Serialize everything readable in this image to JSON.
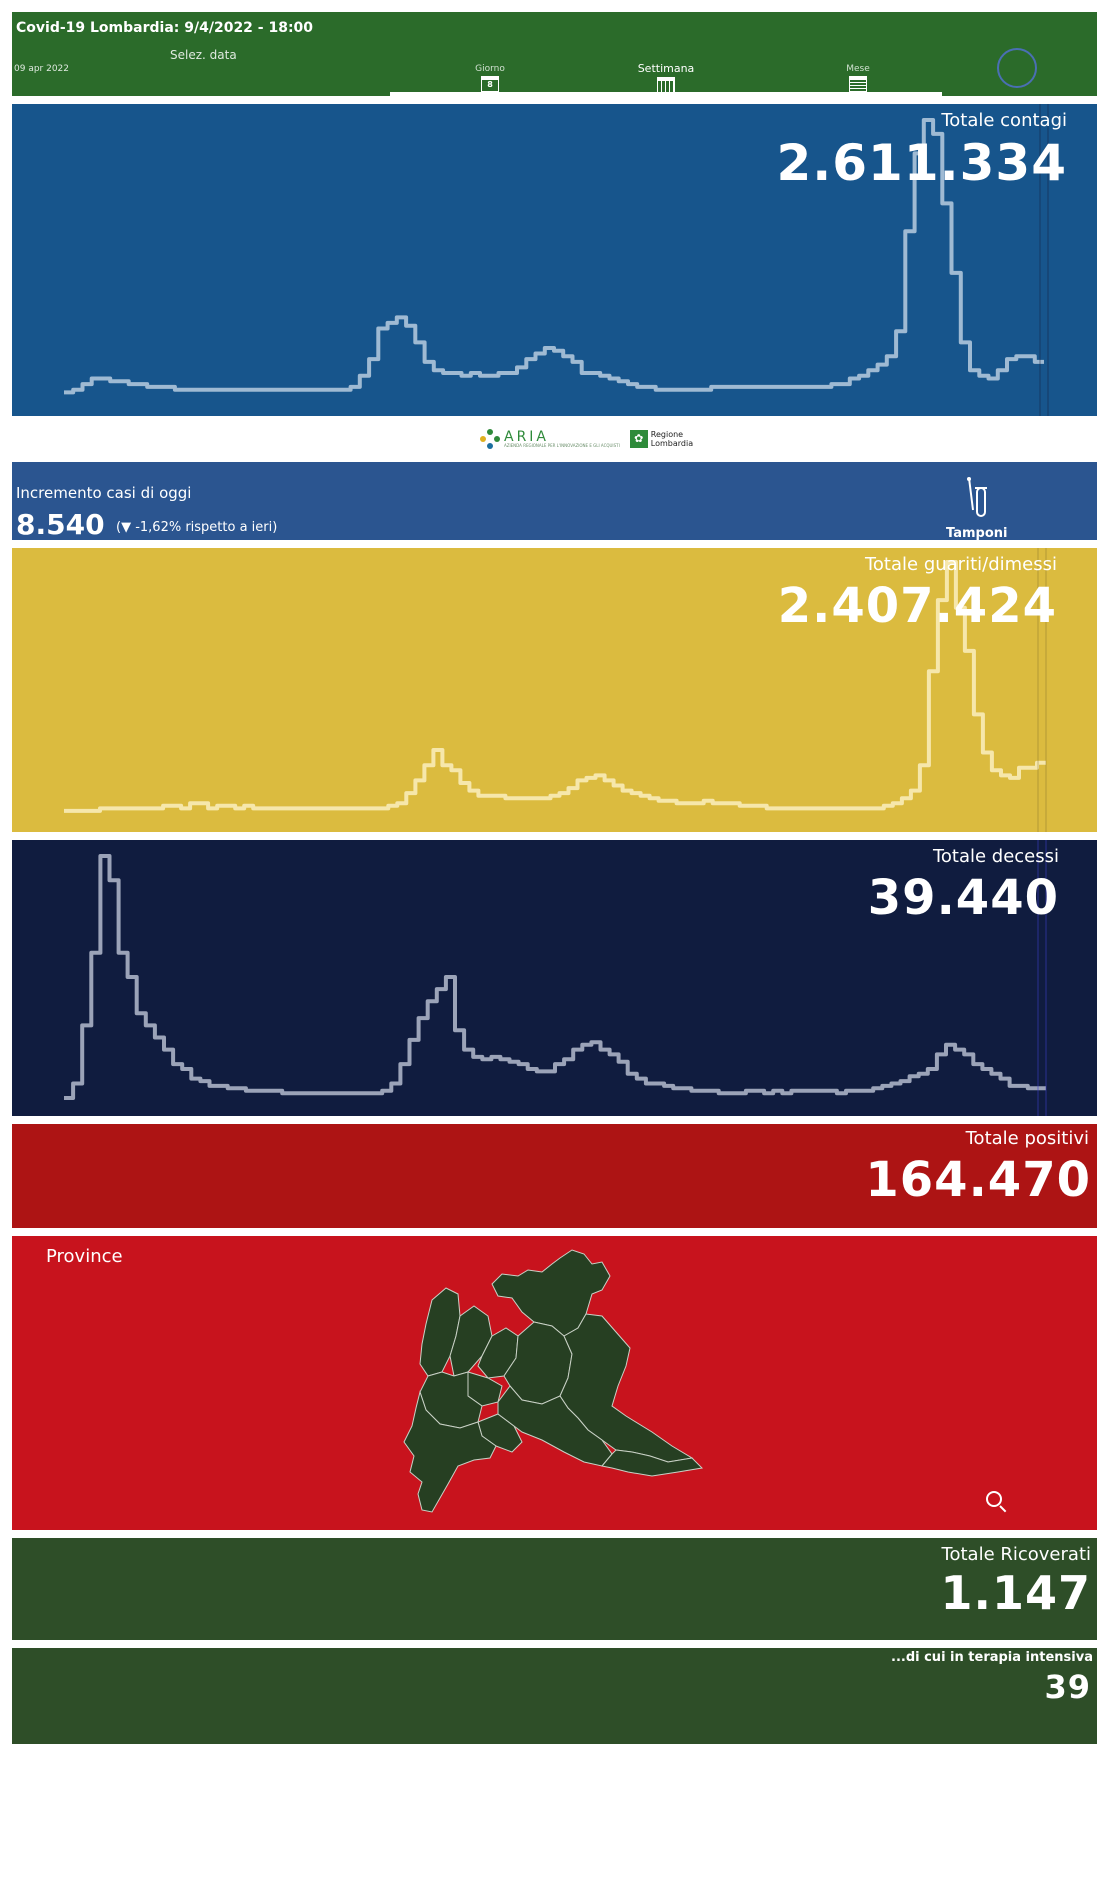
{
  "header": {
    "title": "Covid-19 Lombardia: 9/4/2022 - 18:00",
    "select_label": "Selez. data",
    "date": "09 apr 2022",
    "options": [
      {
        "label": "Giorno",
        "icon": "calendar-day-icon",
        "glyph": "8",
        "selected": false
      },
      {
        "label": "Settimana",
        "icon": "calendar-week-icon",
        "glyph": "",
        "selected": true
      },
      {
        "label": "Mese",
        "icon": "calendar-month-icon",
        "glyph": "",
        "selected": false
      }
    ]
  },
  "contagi": {
    "title": "Totale contagi",
    "value": "2.611.334",
    "color": "#17558c",
    "chart_data": {
      "type": "line",
      "step": true,
      "series": [
        {
          "values": [
            2,
            3,
            5,
            7,
            7,
            6,
            6,
            5,
            5,
            4,
            4,
            4,
            3,
            3,
            3,
            3,
            3,
            3,
            3,
            3,
            3,
            3,
            3,
            3,
            3,
            3,
            3,
            3,
            3,
            3,
            3,
            4,
            8,
            14,
            25,
            27,
            29,
            26,
            20,
            13,
            10,
            9,
            9,
            8,
            9,
            8,
            8,
            9,
            9,
            11,
            14,
            16,
            18,
            17,
            15,
            13,
            9,
            9,
            8,
            7,
            6,
            5,
            4,
            4,
            3,
            3,
            3,
            3,
            3,
            3,
            4,
            4,
            4,
            4,
            4,
            4,
            4,
            4,
            4,
            4,
            4,
            4,
            4,
            5,
            5,
            7,
            8,
            10,
            12,
            15,
            24,
            60,
            88,
            100,
            95,
            70,
            45,
            20,
            10,
            8,
            7,
            10,
            14,
            15,
            15,
            13
          ]
        }
      ]
    }
  },
  "logos": {
    "aria_name": "ARIA",
    "aria_sub": "AZIENDA REGIONALE PER L'INNOVAZIONE E GLI ACQUISTI",
    "region_name": "Regione Lombardia"
  },
  "incremento": {
    "label": "Incremento casi di oggi",
    "value": "8.540",
    "delta": "(▼ -1,62% rispetto a  ieri)",
    "tamponi_label": "Tamponi",
    "color": "#2b5590"
  },
  "guariti": {
    "title": "Totale guariti/dimessi",
    "value": "2.407.424",
    "color": "#dbbb3f",
    "chart_data": {
      "type": "line",
      "step": true,
      "series": [
        {
          "values": [
            2,
            2,
            2,
            2,
            3,
            3,
            3,
            3,
            3,
            3,
            3,
            4,
            4,
            3,
            5,
            5,
            3,
            4,
            4,
            3,
            4,
            3,
            3,
            3,
            3,
            3,
            3,
            3,
            3,
            3,
            3,
            3,
            3,
            3,
            3,
            3,
            4,
            5,
            9,
            14,
            20,
            26,
            20,
            18,
            13,
            10,
            8,
            8,
            8,
            7,
            7,
            7,
            7,
            7,
            8,
            9,
            11,
            14,
            15,
            16,
            14,
            12,
            10,
            9,
            8,
            7,
            6,
            6,
            5,
            5,
            5,
            6,
            5,
            5,
            5,
            4,
            4,
            4,
            3,
            3,
            3,
            3,
            3,
            3,
            3,
            3,
            3,
            3,
            3,
            3,
            3,
            4,
            5,
            7,
            10,
            20,
            57,
            85,
            100,
            82,
            65,
            40,
            25,
            18,
            16,
            15,
            19,
            19,
            21
          ]
        }
      ]
    }
  },
  "decessi": {
    "title": "Totale decessi",
    "value": "39.440",
    "color": "#101c3f",
    "chart_data": {
      "type": "line",
      "step": true,
      "series": [
        {
          "values": [
            0,
            6,
            30,
            60,
            100,
            90,
            60,
            50,
            35,
            30,
            25,
            20,
            14,
            12,
            8,
            7,
            5,
            5,
            4,
            4,
            3,
            3,
            3,
            3,
            2,
            2,
            2,
            2,
            2,
            2,
            2,
            2,
            2,
            2,
            2,
            3,
            6,
            14,
            24,
            33,
            40,
            45,
            50,
            28,
            20,
            17,
            16,
            17,
            16,
            15,
            14,
            12,
            11,
            11,
            14,
            16,
            20,
            22,
            23,
            20,
            18,
            15,
            10,
            8,
            6,
            6,
            5,
            4,
            4,
            3,
            3,
            3,
            2,
            2,
            2,
            3,
            3,
            2,
            3,
            2,
            3,
            3,
            3,
            3,
            3,
            2,
            3,
            3,
            3,
            4,
            5,
            6,
            7,
            9,
            10,
            12,
            18,
            22,
            20,
            18,
            14,
            12,
            10,
            8,
            5,
            5,
            4,
            4
          ]
        }
      ]
    }
  },
  "positivi": {
    "title": "Totale positivi",
    "value": "164.470",
    "color": "#ad1414"
  },
  "province": {
    "title": "Province",
    "color": "#c8131d",
    "map_color": "#263f22",
    "zoom_icon": "zoom-reset-icon"
  },
  "ricoverati": {
    "title": "Totale Ricoverati",
    "value": "1.147",
    "color": "#2e4e28"
  },
  "intensiva": {
    "title": "...di cui in terapia intensiva",
    "value": "39",
    "color": "#2e4e28"
  }
}
